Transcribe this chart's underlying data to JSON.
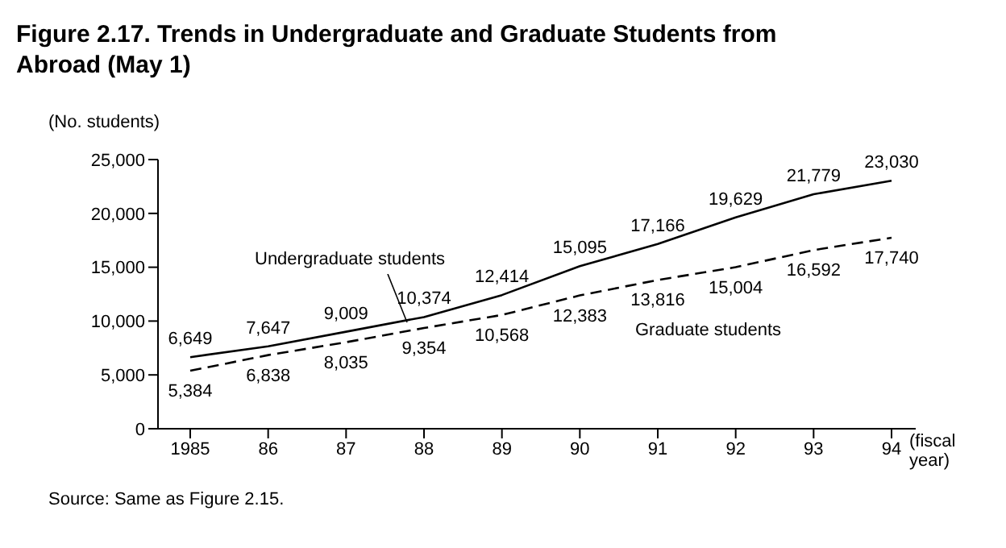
{
  "chart_data": {
    "type": "line",
    "title": "Figure 2.17. Trends in Undergraduate and Graduate Students from Abroad (May 1)",
    "ylabel": "(No. students)",
    "xlabel": "(fiscal year)",
    "categories": [
      "1985",
      "86",
      "87",
      "88",
      "89",
      "90",
      "91",
      "92",
      "93",
      "94"
    ],
    "series": [
      {
        "name": "Undergraduate students",
        "color": "#000000",
        "line_style": "solid",
        "values": [
          6649,
          7647,
          9009,
          10374,
          12414,
          15095,
          17166,
          19629,
          21779,
          23030
        ],
        "value_labels": [
          "6,649",
          "7,647",
          "9,009",
          "10,374",
          "12,414",
          "15,095",
          "17,166",
          "19,629",
          "21,779",
          "23,030"
        ]
      },
      {
        "name": "Graduate students",
        "color": "#000000",
        "line_style": "dashed",
        "values": [
          5384,
          6838,
          8035,
          9354,
          10568,
          12383,
          13816,
          15004,
          16592,
          17740
        ],
        "value_labels": [
          "5,384",
          "6,838",
          "8,035",
          "9,354",
          "10,568",
          "12,383",
          "13,816",
          "15,004",
          "16,592",
          "17,740"
        ]
      }
    ],
    "ylim": [
      0,
      25000
    ],
    "yticks": [
      {
        "value": 0,
        "label": "0"
      },
      {
        "value": 5000,
        "label": "5,000"
      },
      {
        "value": 10000,
        "label": "10,000"
      },
      {
        "value": 15000,
        "label": "15,000"
      },
      {
        "value": 20000,
        "label": "20,000"
      },
      {
        "value": 25000,
        "label": "25,000"
      }
    ],
    "grid": false,
    "legend": false,
    "marker": "none",
    "annotations": [
      "Source: Same as Figure 2.15."
    ]
  }
}
